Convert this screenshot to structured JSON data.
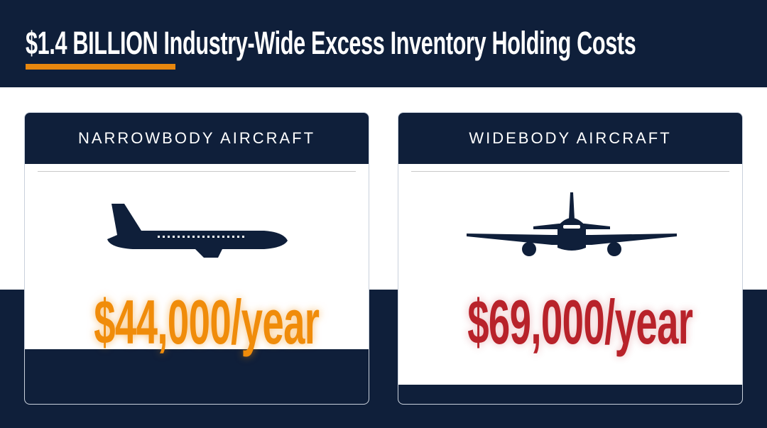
{
  "header": {
    "title": "$1.4 BILLION Industry-Wide Excess Inventory Holding Costs"
  },
  "colors": {
    "navy": "#0f1f3a",
    "accent_orange": "#f08c0a",
    "accent_red": "#b8222a"
  },
  "cards": [
    {
      "label": "NARROWBODY AIRCRAFT",
      "icon": "narrowbody-airplane-side-icon",
      "price": "$44,000/year"
    },
    {
      "label": "WIDEBODY AIRCRAFT",
      "icon": "widebody-airplane-front-icon",
      "price": "$69,000/year"
    }
  ]
}
